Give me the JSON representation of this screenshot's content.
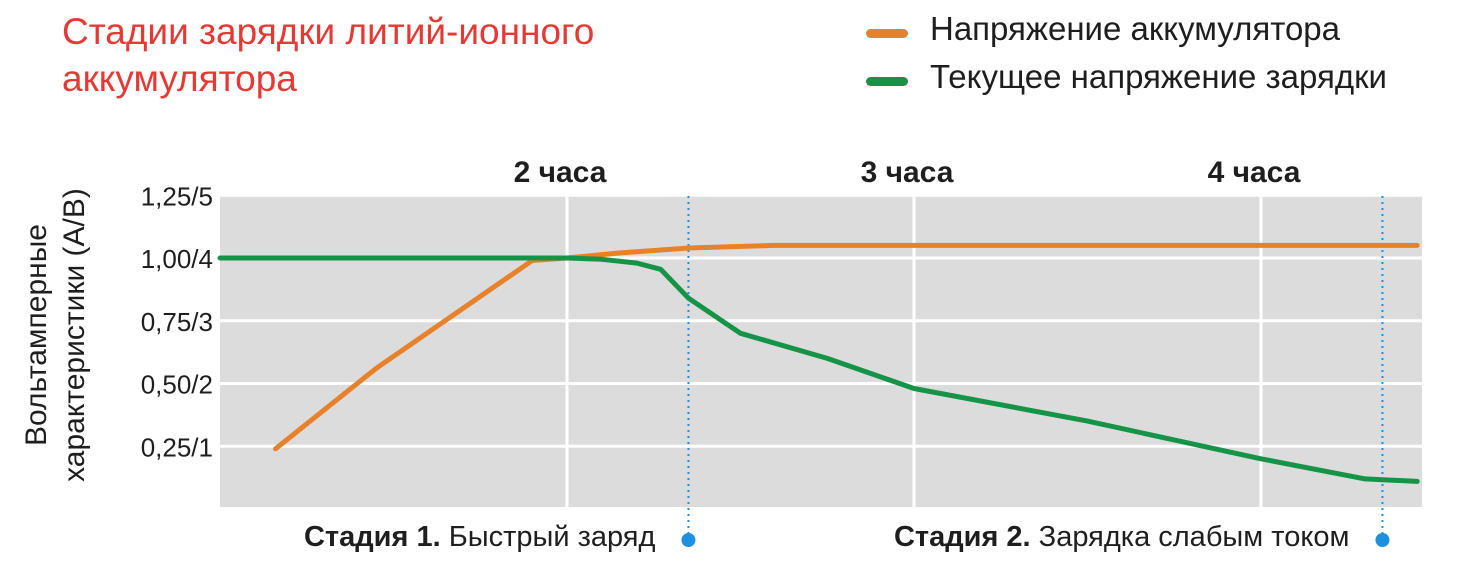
{
  "chart_data": {
    "type": "line",
    "title": "Стадии зарядки литий-ионного аккумулятора",
    "title_lines": [
      "Стадии зарядки литий-ионного",
      "аккумулятора"
    ],
    "ylabel_lines": [
      "Вольтамперные",
      "характеристики (А/В)"
    ],
    "y_ticks": [
      "1,25/5",
      "1,00/4",
      "0,75/3",
      "0,50/2",
      "0,25/1"
    ],
    "y_tick_values": [
      1.25,
      1.0,
      0.75,
      0.5,
      0.25
    ],
    "ylim": [
      0,
      1.25
    ],
    "xlim": [
      0,
      3.45
    ],
    "period_labels": [
      {
        "text": "2 часа",
        "x": 1.0
      },
      {
        "text": "3 часа",
        "x": 2.0
      },
      {
        "text": "4 часа",
        "x": 3.0
      }
    ],
    "x_gridlines": [
      1.0,
      2.0,
      3.0
    ],
    "stage_boundaries": [
      1.35,
      3.35
    ],
    "stages": [
      {
        "bold": "Стадия 1.",
        "text": " Быстрый заряд"
      },
      {
        "bold": "Стадия 2.",
        "text": " Зарядка слабым током"
      }
    ],
    "grid": true,
    "legend_position": "top-right",
    "series": [
      {
        "name": "Напряжение аккумулятора",
        "color": "#e8822a",
        "x": [
          0.16,
          0.45,
          0.9,
          1.0,
          1.15,
          1.35,
          1.6,
          2.0,
          2.5,
          3.0,
          3.45
        ],
        "y": [
          0.24,
          0.56,
          0.99,
          1.0,
          1.02,
          1.04,
          1.05,
          1.05,
          1.05,
          1.05,
          1.05
        ]
      },
      {
        "name": "Текущее напряжение зарядки",
        "color": "#159447",
        "x": [
          0,
          0.5,
          1.0,
          1.1,
          1.2,
          1.27,
          1.35,
          1.5,
          1.75,
          2.0,
          2.5,
          3.0,
          3.3,
          3.45
        ],
        "y": [
          1.0,
          1.0,
          1.0,
          0.995,
          0.98,
          0.955,
          0.84,
          0.7,
          0.6,
          0.48,
          0.35,
          0.2,
          0.12,
          0.11
        ]
      }
    ]
  },
  "colors": {
    "title": "#e53935",
    "plot_bg": "#dcdcdc",
    "grid": "#ffffff",
    "marker": "#1e90e0"
  }
}
